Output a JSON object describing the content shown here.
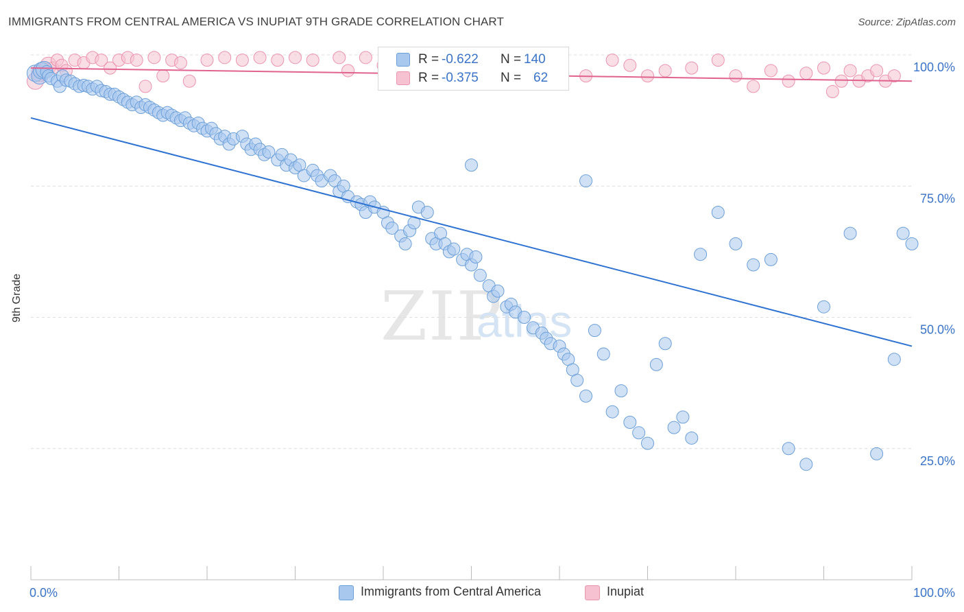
{
  "header": {
    "title": "IMMIGRANTS FROM CENTRAL AMERICA VS INUPIAT 9TH GRADE CORRELATION CHART",
    "source": "Source: ZipAtlas.com"
  },
  "stats": {
    "row1": {
      "r_label": "R =",
      "r_value": "-0.622",
      "n_label": "N =",
      "n_value": "140"
    },
    "row2": {
      "r_label": "R =",
      "r_value": "-0.375",
      "n_label": "N =",
      "n_value": "62"
    }
  },
  "watermark": {
    "zip": "ZIP",
    "atlas": "atlas"
  },
  "chart_data": {
    "type": "scatter",
    "title": "IMMIGRANTS FROM CENTRAL AMERICA VS INUPIAT 9TH GRADE CORRELATION CHART",
    "xlabel": "",
    "ylabel": "9th Grade",
    "xlim": [
      0,
      100
    ],
    "ylim": [
      0,
      100
    ],
    "x_tick_labels": [
      "0.0%",
      "100.0%"
    ],
    "y_tick_labels": [
      "100.0%",
      "75.0%",
      "50.0%",
      "25.0%"
    ],
    "y_ticks": [
      100,
      75,
      50,
      25
    ],
    "grid": true,
    "legend_position": "bottom",
    "colors": {
      "blue_fill": "#a9c8ee",
      "blue_stroke": "#6c9fd9",
      "blue_line": "#2e72d2",
      "pink_fill": "#f6c2d2",
      "pink_stroke": "#ec93b0",
      "pink_line": "#e0628f",
      "grid": "#dcdcdc",
      "tick_text": "#3a73c8"
    },
    "series": [
      {
        "name": "Immigrants from Central America",
        "color": "#a9c8ee",
        "trend": {
          "x": [
            0,
            100
          ],
          "y": [
            88,
            44.5
          ]
        },
        "points": [
          [
            0.5,
            96.5
          ],
          [
            1,
            96
          ],
          [
            1.2,
            97
          ],
          [
            1.5,
            97.2
          ],
          [
            1.8,
            96.8
          ],
          [
            2,
            96
          ],
          [
            2.3,
            95.5
          ],
          [
            3,
            95
          ],
          [
            3.3,
            94
          ],
          [
            3.6,
            96
          ],
          [
            4,
            95.2
          ],
          [
            4.5,
            95
          ],
          [
            5,
            94.5
          ],
          [
            5.5,
            94
          ],
          [
            6,
            94.2
          ],
          [
            6.5,
            94
          ],
          [
            7,
            93.5
          ],
          [
            7.5,
            94
          ],
          [
            8,
            93.2
          ],
          [
            8.5,
            93
          ],
          [
            9,
            92.5
          ],
          [
            9.5,
            92.5
          ],
          [
            10,
            92
          ],
          [
            10.5,
            91.5
          ],
          [
            11,
            91
          ],
          [
            11.5,
            90.5
          ],
          [
            12,
            91
          ],
          [
            12.5,
            90
          ],
          [
            13,
            90.5
          ],
          [
            13.5,
            90
          ],
          [
            14,
            89.5
          ],
          [
            14.5,
            89
          ],
          [
            15,
            88.5
          ],
          [
            15.5,
            89
          ],
          [
            16,
            88.5
          ],
          [
            16.5,
            88
          ],
          [
            17,
            87.5
          ],
          [
            17.5,
            88
          ],
          [
            18,
            87
          ],
          [
            18.5,
            86.5
          ],
          [
            19,
            87
          ],
          [
            19.5,
            86
          ],
          [
            20,
            85.5
          ],
          [
            20.5,
            86
          ],
          [
            21,
            85
          ],
          [
            21.5,
            84
          ],
          [
            22,
            84.5
          ],
          [
            22.5,
            83
          ],
          [
            23,
            84
          ],
          [
            24,
            84.5
          ],
          [
            24.5,
            83
          ],
          [
            25,
            82
          ],
          [
            25.5,
            83
          ],
          [
            26,
            82
          ],
          [
            26.5,
            81
          ],
          [
            27,
            81.5
          ],
          [
            28,
            80
          ],
          [
            28.5,
            81
          ],
          [
            29,
            79
          ],
          [
            29.5,
            80
          ],
          [
            30,
            78.5
          ],
          [
            30.5,
            79
          ],
          [
            31,
            77
          ],
          [
            32,
            78
          ],
          [
            32.5,
            77
          ],
          [
            33,
            76
          ],
          [
            34,
            77
          ],
          [
            34.5,
            76
          ],
          [
            35,
            74
          ],
          [
            35.5,
            75
          ],
          [
            36,
            73
          ],
          [
            37,
            72
          ],
          [
            37.5,
            71.5
          ],
          [
            38,
            70
          ],
          [
            38.5,
            72
          ],
          [
            39,
            71
          ],
          [
            40,
            70
          ],
          [
            40.5,
            68
          ],
          [
            41,
            67
          ],
          [
            42,
            65.5
          ],
          [
            42.5,
            64
          ],
          [
            43,
            66.5
          ],
          [
            43.5,
            68
          ],
          [
            44,
            71
          ],
          [
            45,
            70
          ],
          [
            45.5,
            65
          ],
          [
            46,
            64
          ],
          [
            46.5,
            66
          ],
          [
            47,
            64
          ],
          [
            47.5,
            62.5
          ],
          [
            48,
            63
          ],
          [
            49,
            61
          ],
          [
            49.5,
            62
          ],
          [
            50,
            60
          ],
          [
            50.5,
            61.5
          ],
          [
            51,
            58
          ],
          [
            52,
            56
          ],
          [
            52.5,
            54
          ],
          [
            53,
            55
          ],
          [
            54,
            52
          ],
          [
            54.5,
            52.5
          ],
          [
            55,
            51
          ],
          [
            56,
            50
          ],
          [
            57,
            48
          ],
          [
            58,
            47
          ],
          [
            58.5,
            46
          ],
          [
            59,
            45
          ],
          [
            60,
            44.5
          ],
          [
            60.5,
            43
          ],
          [
            61,
            42
          ],
          [
            61.5,
            40
          ],
          [
            62,
            38
          ],
          [
            63,
            35
          ],
          [
            64,
            47.5
          ],
          [
            65,
            43
          ],
          [
            66,
            32
          ],
          [
            67,
            36
          ],
          [
            68,
            30
          ],
          [
            69,
            28
          ],
          [
            70,
            26
          ],
          [
            71,
            41
          ],
          [
            72,
            45
          ],
          [
            73,
            29
          ],
          [
            74,
            31
          ],
          [
            75,
            27
          ],
          [
            76,
            62
          ],
          [
            78,
            70
          ],
          [
            80,
            64
          ],
          [
            82,
            60
          ],
          [
            84,
            61
          ],
          [
            86,
            25
          ],
          [
            88,
            22
          ],
          [
            90,
            52
          ],
          [
            93,
            66
          ],
          [
            96,
            24
          ],
          [
            98,
            42
          ],
          [
            99,
            66
          ],
          [
            100,
            64
          ],
          [
            63,
            76
          ],
          [
            50,
            79
          ]
        ]
      },
      {
        "name": "Inupiat",
        "color": "#f6c2d2",
        "trend": {
          "x": [
            0,
            100
          ],
          "y": [
            97.5,
            95
          ]
        },
        "points": [
          [
            0.5,
            95
          ],
          [
            1,
            96.5
          ],
          [
            1.5,
            97
          ],
          [
            2,
            98
          ],
          [
            2.5,
            97.5
          ],
          [
            3,
            99
          ],
          [
            3.5,
            98
          ],
          [
            4,
            97
          ],
          [
            5,
            99
          ],
          [
            6,
            98.5
          ],
          [
            7,
            99.5
          ],
          [
            8,
            99
          ],
          [
            9,
            97.5
          ],
          [
            10,
            99
          ],
          [
            11,
            99.5
          ],
          [
            12,
            99
          ],
          [
            13,
            94
          ],
          [
            14,
            99.5
          ],
          [
            15,
            96
          ],
          [
            16,
            99
          ],
          [
            17,
            98.5
          ],
          [
            18,
            95
          ],
          [
            20,
            99
          ],
          [
            22,
            99.5
          ],
          [
            24,
            99
          ],
          [
            26,
            99.5
          ],
          [
            28,
            99
          ],
          [
            30,
            99.5
          ],
          [
            32,
            99
          ],
          [
            35,
            99.5
          ],
          [
            36,
            97
          ],
          [
            38,
            99.5
          ],
          [
            40,
            98
          ],
          [
            42,
            99
          ],
          [
            44,
            99.5
          ],
          [
            46,
            98
          ],
          [
            48,
            99
          ],
          [
            50,
            99.5
          ],
          [
            55,
            99
          ],
          [
            58,
            99
          ],
          [
            60,
            97.5
          ],
          [
            63,
            96
          ],
          [
            66,
            99
          ],
          [
            68,
            98
          ],
          [
            70,
            96
          ],
          [
            72,
            97
          ],
          [
            75,
            97.5
          ],
          [
            78,
            99
          ],
          [
            80,
            96
          ],
          [
            82,
            94
          ],
          [
            84,
            97
          ],
          [
            86,
            95
          ],
          [
            88,
            96.5
          ],
          [
            90,
            97.5
          ],
          [
            91,
            93
          ],
          [
            92,
            95
          ],
          [
            93,
            97
          ],
          [
            94,
            95
          ],
          [
            95,
            96
          ],
          [
            96,
            97
          ],
          [
            97,
            95
          ],
          [
            98,
            96
          ]
        ]
      }
    ]
  },
  "legend": {
    "items": [
      {
        "label": "Immigrants from Central America"
      },
      {
        "label": "Inupiat"
      }
    ]
  }
}
